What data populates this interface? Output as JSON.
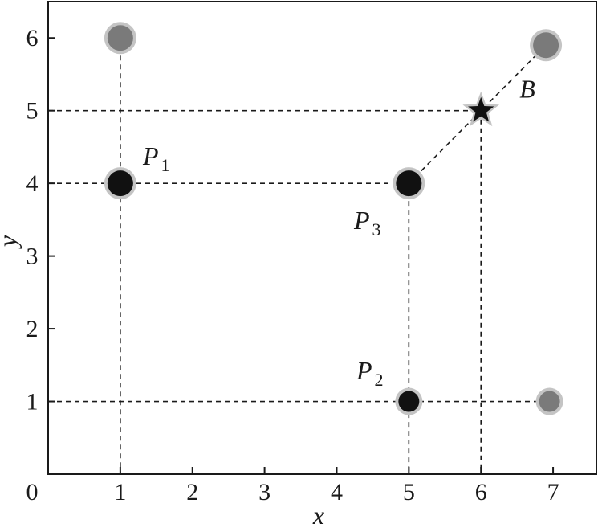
{
  "chart_data": {
    "type": "scatter",
    "xlabel": "x",
    "ylabel": "y",
    "xlim": [
      0,
      7.6
    ],
    "ylim": [
      0,
      6.5
    ],
    "x_ticks": [
      "0",
      "1",
      "2",
      "3",
      "4",
      "5",
      "6",
      "7"
    ],
    "y_ticks": [
      "1",
      "2",
      "3",
      "4",
      "5",
      "6"
    ],
    "grid": false,
    "points": [
      {
        "x": 1,
        "y": 6,
        "style": "gray",
        "label": ""
      },
      {
        "x": 6.9,
        "y": 5.9,
        "style": "gray",
        "label": ""
      },
      {
        "x": 1,
        "y": 4,
        "style": "black",
        "label": "P",
        "sub": "1"
      },
      {
        "x": 5,
        "y": 4,
        "style": "black",
        "label": "P",
        "sub": "3"
      },
      {
        "x": 5,
        "y": 1,
        "style": "black-small",
        "label": "P",
        "sub": "2"
      },
      {
        "x": 6.95,
        "y": 1,
        "style": "gray-small",
        "label": ""
      },
      {
        "x": 6,
        "y": 5,
        "style": "star",
        "label": "B"
      }
    ],
    "guides": [
      {
        "from": [
          1,
          6
        ],
        "to": [
          1,
          0
        ]
      },
      {
        "from": [
          0,
          5
        ],
        "to": [
          6,
          5
        ]
      },
      {
        "from": [
          6,
          5
        ],
        "to": [
          6,
          0
        ]
      },
      {
        "from": [
          0,
          4
        ],
        "to": [
          5,
          4
        ]
      },
      {
        "from": [
          5,
          4
        ],
        "to": [
          5,
          0
        ]
      },
      {
        "from": [
          0,
          1
        ],
        "to": [
          6.95,
          1
        ]
      },
      {
        "from": [
          5,
          4
        ],
        "to": [
          6.9,
          5.9
        ]
      }
    ],
    "colors": {
      "black": "#111111",
      "gray": "#7a7a7a",
      "halo": "#c4c4c4",
      "frame": "#1a1a1a"
    }
  }
}
